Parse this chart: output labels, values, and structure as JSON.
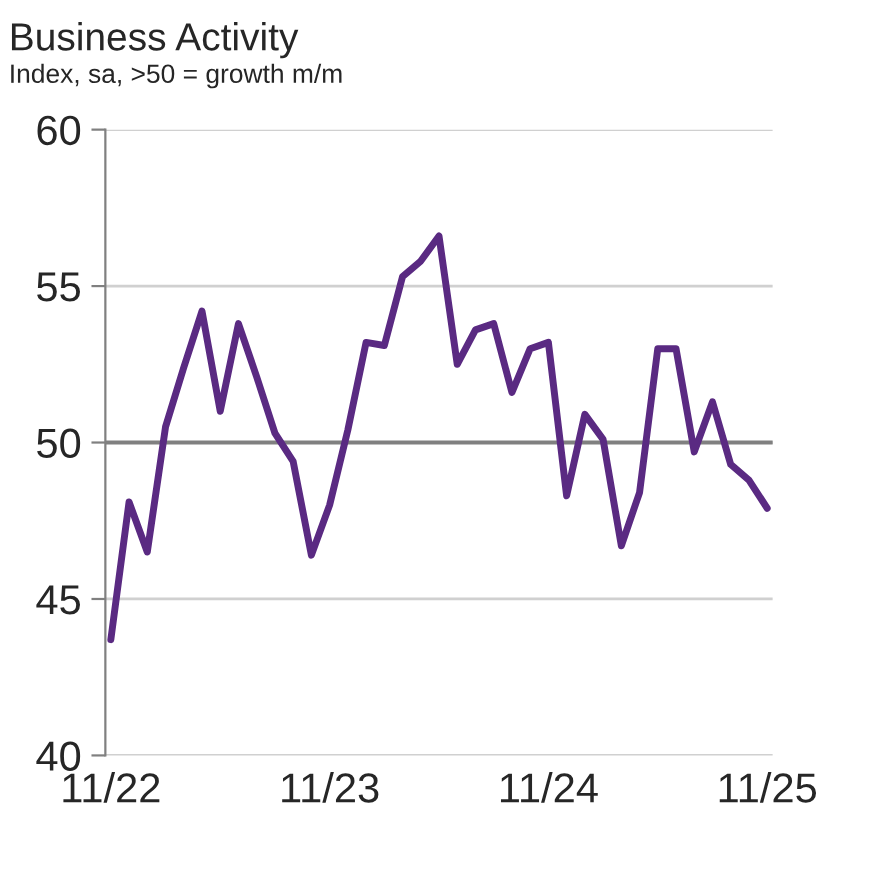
{
  "chart_data": {
    "type": "line",
    "title": "Business Activity",
    "subtitle": "Index, sa, >50 = growth m/m",
    "categories": [
      "11/22",
      null,
      null,
      null,
      null,
      null,
      null,
      null,
      null,
      null,
      null,
      null,
      "11/23",
      null,
      null,
      null,
      null,
      null,
      null,
      null,
      null,
      null,
      null,
      null,
      "11/24",
      null,
      null,
      null,
      null,
      null,
      null,
      null,
      null,
      null,
      null,
      null,
      "11/25"
    ],
    "series": [
      {
        "color": "#5a2a82",
        "values": [
          43.7,
          48.1,
          46.5,
          50.5,
          52.4,
          54.2,
          51.0,
          53.8,
          52.1,
          50.3,
          49.4,
          46.4,
          48.0,
          50.4,
          53.2,
          53.1,
          55.3,
          55.8,
          56.6,
          52.5,
          53.6,
          53.8,
          51.6,
          53.0,
          53.2,
          48.3,
          50.9,
          50.1,
          46.7,
          48.4,
          53.0,
          53.0,
          49.7,
          51.3,
          49.3,
          48.8,
          47.9
        ]
      }
    ],
    "ylim": [
      40,
      60
    ],
    "yticks": [
      40,
      45,
      50,
      55,
      60
    ],
    "grid": "y",
    "ref_lines": [
      {
        "axis": "y",
        "value": 50,
        "color": "#808080"
      }
    ],
    "line_style": "solid",
    "marker": "none",
    "legend": false
  }
}
